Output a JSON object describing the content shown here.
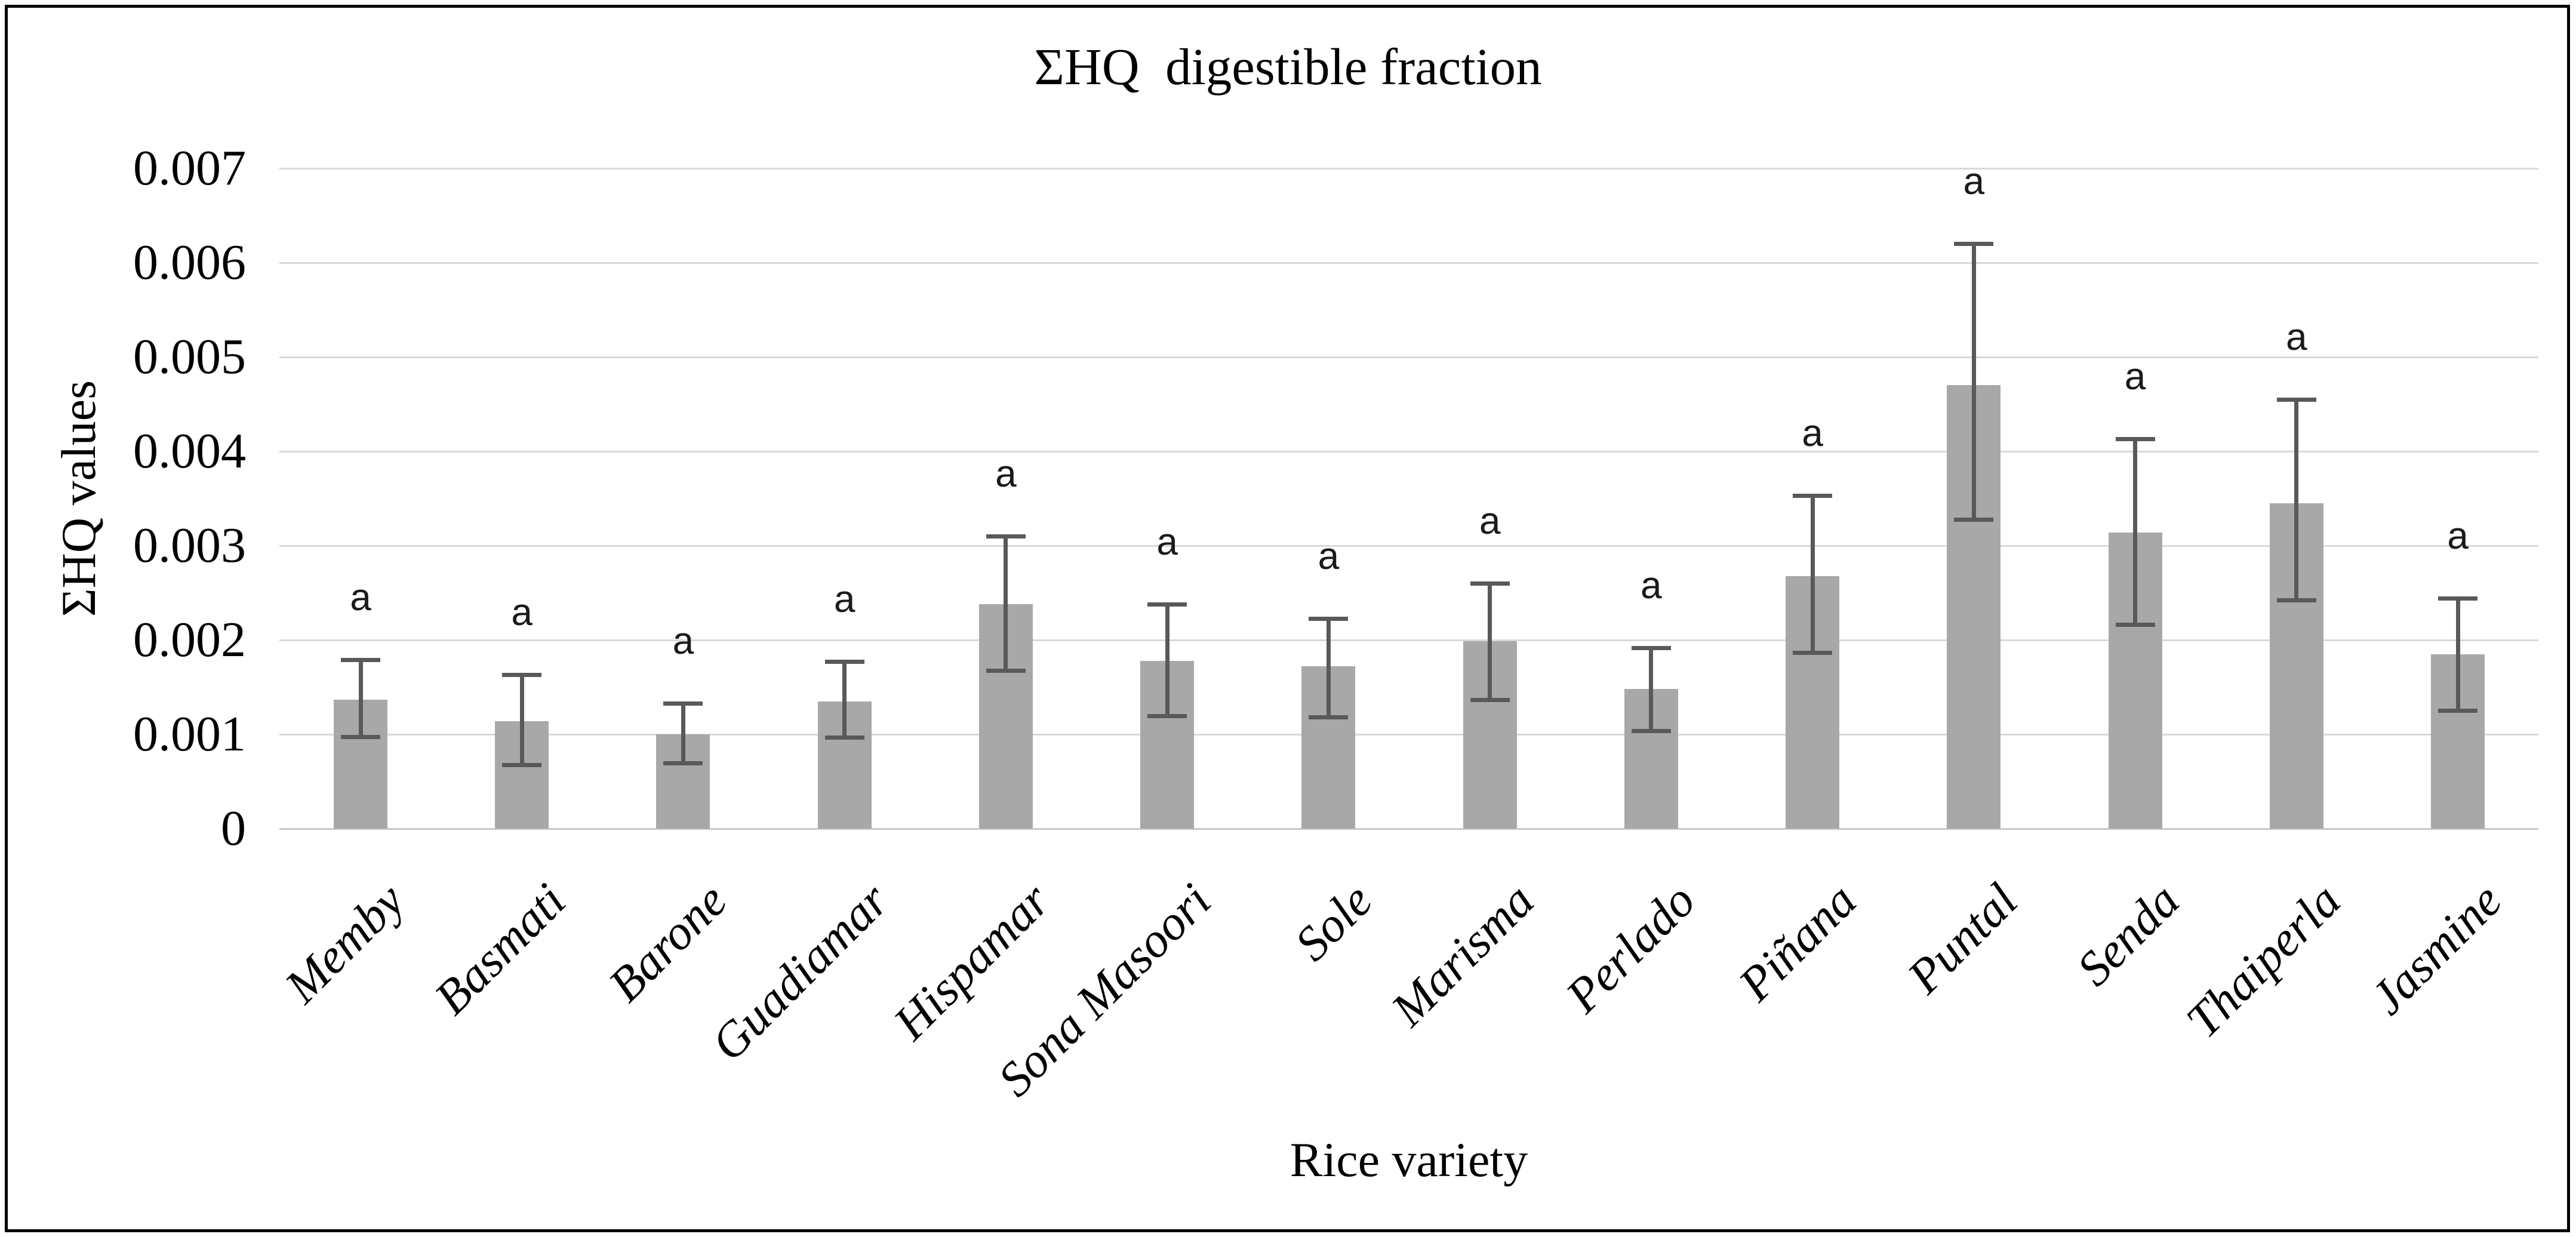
{
  "figure": {
    "title": "ΣHQ  digestible fraction"
  },
  "chart_data": {
    "type": "bar",
    "title": "ΣHQ  digestible fraction",
    "xlabel": "Rice variety",
    "ylabel": "ΣHQ values",
    "ylim": [
      0,
      0.007
    ],
    "ytick_step": 0.001,
    "ytick_labels": [
      "0",
      "0.001",
      "0.002",
      "0.003",
      "0.004",
      "0.005",
      "0.006",
      "0.007"
    ],
    "grid": true,
    "legend": "none",
    "categories": [
      "Memby",
      "Basmati",
      "Barone",
      "Guadiamar",
      "Hispamar",
      "Sona Masoori",
      "Sole",
      "Marisma",
      "Perlado",
      "Piñana",
      "Puntal",
      "Senda",
      "Thaiperla",
      "Jasmine"
    ],
    "values": [
      0.00137,
      0.00114,
      0.001,
      0.00135,
      0.00238,
      0.00178,
      0.00172,
      0.00199,
      0.00148,
      0.00268,
      0.0047,
      0.00314,
      0.00345,
      0.00185
    ],
    "error_high": [
      0.00179,
      0.00163,
      0.00133,
      0.00177,
      0.0031,
      0.00238,
      0.00223,
      0.0026,
      0.00192,
      0.00353,
      0.0062,
      0.00413,
      0.00455,
      0.00244
    ],
    "error_low": [
      0.00097,
      0.00067,
      0.00069,
      0.00096,
      0.00167,
      0.00119,
      0.00118,
      0.00136,
      0.00103,
      0.00186,
      0.00327,
      0.00216,
      0.00242,
      0.00125
    ],
    "significance_letters": [
      "a",
      "a",
      "a",
      "a",
      "a",
      "a",
      "a",
      "a",
      "a",
      "a",
      "a",
      "a",
      "a",
      "a"
    ],
    "colors": {
      "bar": "#a8a8a8",
      "error_bar": "#595959",
      "gridline": "#d9d9d9",
      "axis_line": "#c9c9c9",
      "text": "#000000",
      "frame_border": "#000000",
      "background": "#ffffff"
    }
  }
}
